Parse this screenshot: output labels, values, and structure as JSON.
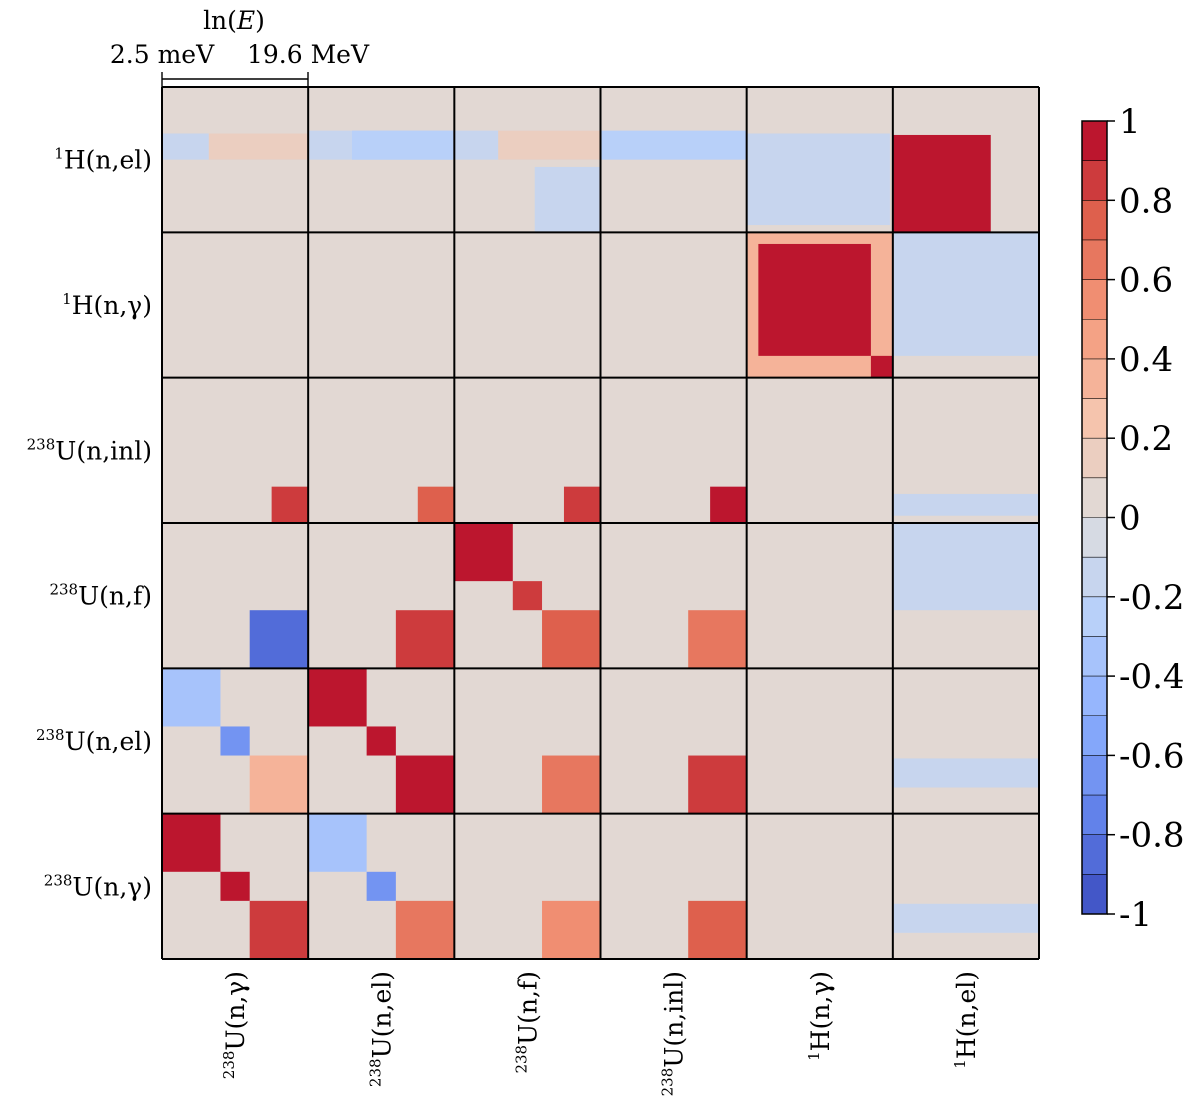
{
  "chart_data": {
    "type": "heatmap",
    "title": "",
    "energy_axis": {
      "label": "ln(E)",
      "label_base": "ln(",
      "label_var": "E",
      "label_close": ")",
      "min_label": "2.5 meV",
      "max_label": "19.6 MeV"
    },
    "rows": [
      {
        "sup": "1",
        "name": "H(n,el)"
      },
      {
        "sup": "1",
        "name": "H(n,γ)"
      },
      {
        "sup": "238",
        "name": "U(n,inl)"
      },
      {
        "sup": "238",
        "name": "U(n,f)"
      },
      {
        "sup": "238",
        "name": "U(n,el)"
      },
      {
        "sup": "238",
        "name": "U(n,γ)"
      }
    ],
    "columns": [
      {
        "sup": "238",
        "name": "U(n,γ)"
      },
      {
        "sup": "238",
        "name": "U(n,el)"
      },
      {
        "sup": "238",
        "name": "U(n,f)"
      },
      {
        "sup": "238",
        "name": "U(n,inl)"
      },
      {
        "sup": "1",
        "name": "H(n,γ)"
      },
      {
        "sup": "1",
        "name": "H(n,el)"
      }
    ],
    "colorbar": {
      "min": -1,
      "max": 1,
      "levels": 20,
      "ticks": [
        1,
        0.8,
        0.6,
        0.4,
        0.2,
        0,
        -0.2,
        -0.4,
        -0.6,
        -0.8,
        -1
      ],
      "tick_labels": [
        "1",
        "0.8",
        "0.6",
        "0.4",
        "0.2",
        "0",
        "-0.2",
        "-0.4",
        "-0.6",
        "-0.8",
        "-1"
      ],
      "colormap": "coolwarm"
    },
    "blocks_note": "Each cell holds an approximate correlation matrix sub-block; values in [-1, 1], energy bins low to high.",
    "blocks": [
      {
        "row": 0,
        "col": 0,
        "patches": [
          [
            0.0,
            0.32,
            1.0,
            0.5,
            -0.15
          ],
          [
            0.32,
            0.32,
            1.0,
            0.5,
            0.12
          ]
        ]
      },
      {
        "row": 0,
        "col": 1,
        "patches": [
          [
            0.0,
            0.3,
            1.0,
            0.5,
            -0.12
          ],
          [
            0.3,
            0.3,
            1.0,
            0.5,
            -0.25
          ]
        ]
      },
      {
        "row": 0,
        "col": 2,
        "patches": [
          [
            0.0,
            0.3,
            1.0,
            0.5,
            -0.15
          ],
          [
            0.3,
            0.3,
            1.0,
            0.5,
            0.15
          ],
          [
            0.55,
            0.55,
            1.0,
            1.0,
            -0.12
          ]
        ]
      },
      {
        "row": 0,
        "col": 3,
        "patches": [
          [
            0.0,
            0.3,
            1.0,
            0.5,
            -0.25
          ]
        ]
      },
      {
        "row": 0,
        "col": 4,
        "patches": [
          [
            0.0,
            0.32,
            0.98,
            0.95,
            -0.12
          ]
        ]
      },
      {
        "row": 0,
        "col": 5,
        "patches": [
          [
            0.0,
            0.33,
            0.67,
            1.0,
            1.0
          ]
        ]
      },
      {
        "row": 1,
        "col": 4,
        "patches": [
          [
            0.0,
            0.0,
            1.0,
            1.0,
            0.4
          ],
          [
            0.08,
            0.08,
            0.85,
            0.85,
            0.95
          ],
          [
            0.85,
            0.85,
            1.0,
            1.0,
            1.0
          ]
        ]
      },
      {
        "row": 1,
        "col": 5,
        "patches": [
          [
            0.0,
            0.0,
            1.0,
            0.85,
            -0.12
          ]
        ]
      },
      {
        "row": 2,
        "col": 0,
        "patches": [
          [
            0.75,
            0.75,
            1.0,
            1.0,
            0.8
          ]
        ]
      },
      {
        "row": 2,
        "col": 1,
        "patches": [
          [
            0.75,
            0.75,
            1.0,
            1.0,
            0.75
          ]
        ]
      },
      {
        "row": 2,
        "col": 2,
        "patches": [
          [
            0.75,
            0.75,
            1.0,
            1.0,
            0.8
          ]
        ]
      },
      {
        "row": 2,
        "col": 3,
        "patches": [
          [
            0.75,
            0.75,
            1.0,
            1.0,
            0.95
          ]
        ]
      },
      {
        "row": 2,
        "col": 5,
        "patches": [
          [
            0.0,
            0.8,
            1.0,
            0.95,
            -0.2
          ]
        ]
      },
      {
        "row": 3,
        "col": 0,
        "patches": [
          [
            0.6,
            0.6,
            1.0,
            1.0,
            -0.85
          ]
        ]
      },
      {
        "row": 3,
        "col": 1,
        "patches": [
          [
            0.6,
            0.6,
            1.0,
            1.0,
            0.85
          ]
        ]
      },
      {
        "row": 3,
        "col": 2,
        "patches": [
          [
            0.0,
            0.0,
            0.4,
            0.4,
            1.0
          ],
          [
            0.4,
            0.4,
            0.6,
            0.6,
            0.85
          ],
          [
            0.6,
            0.6,
            1.0,
            1.0,
            0.7
          ]
        ]
      },
      {
        "row": 3,
        "col": 3,
        "patches": [
          [
            0.6,
            0.6,
            1.0,
            1.0,
            0.6
          ]
        ]
      },
      {
        "row": 3,
        "col": 5,
        "patches": [
          [
            0.0,
            0.0,
            1.0,
            0.6,
            -0.15
          ]
        ]
      },
      {
        "row": 4,
        "col": 0,
        "patches": [
          [
            0.0,
            0.0,
            0.4,
            0.4,
            -0.35
          ],
          [
            0.4,
            0.4,
            0.6,
            0.6,
            -0.7
          ],
          [
            0.6,
            0.6,
            1.0,
            1.0,
            0.4
          ]
        ]
      },
      {
        "row": 4,
        "col": 1,
        "patches": [
          [
            0.0,
            0.0,
            0.4,
            0.4,
            1.0
          ],
          [
            0.4,
            0.4,
            0.6,
            0.6,
            0.95
          ],
          [
            0.6,
            0.6,
            1.0,
            1.0,
            1.0
          ]
        ]
      },
      {
        "row": 4,
        "col": 2,
        "patches": [
          [
            0.6,
            0.6,
            1.0,
            1.0,
            0.6
          ]
        ]
      },
      {
        "row": 4,
        "col": 3,
        "patches": [
          [
            0.6,
            0.6,
            1.0,
            1.0,
            0.8
          ]
        ]
      },
      {
        "row": 4,
        "col": 5,
        "patches": [
          [
            0.0,
            0.62,
            1.0,
            0.82,
            -0.18
          ]
        ]
      },
      {
        "row": 5,
        "col": 0,
        "patches": [
          [
            0.0,
            0.0,
            0.4,
            0.4,
            1.0
          ],
          [
            0.4,
            0.4,
            0.6,
            0.6,
            0.95
          ],
          [
            0.6,
            0.6,
            1.0,
            1.0,
            0.9
          ]
        ]
      },
      {
        "row": 5,
        "col": 1,
        "patches": [
          [
            0.0,
            0.0,
            0.4,
            0.4,
            -0.3
          ],
          [
            0.4,
            0.4,
            0.6,
            0.6,
            -0.65
          ],
          [
            0.6,
            0.6,
            1.0,
            1.0,
            0.65
          ]
        ]
      },
      {
        "row": 5,
        "col": 2,
        "patches": [
          [
            0.6,
            0.6,
            1.0,
            1.0,
            0.55
          ]
        ]
      },
      {
        "row": 5,
        "col": 3,
        "patches": [
          [
            0.6,
            0.6,
            1.0,
            1.0,
            0.75
          ]
        ]
      },
      {
        "row": 5,
        "col": 5,
        "patches": [
          [
            0.0,
            0.62,
            1.0,
            0.82,
            -0.15
          ]
        ]
      }
    ]
  }
}
